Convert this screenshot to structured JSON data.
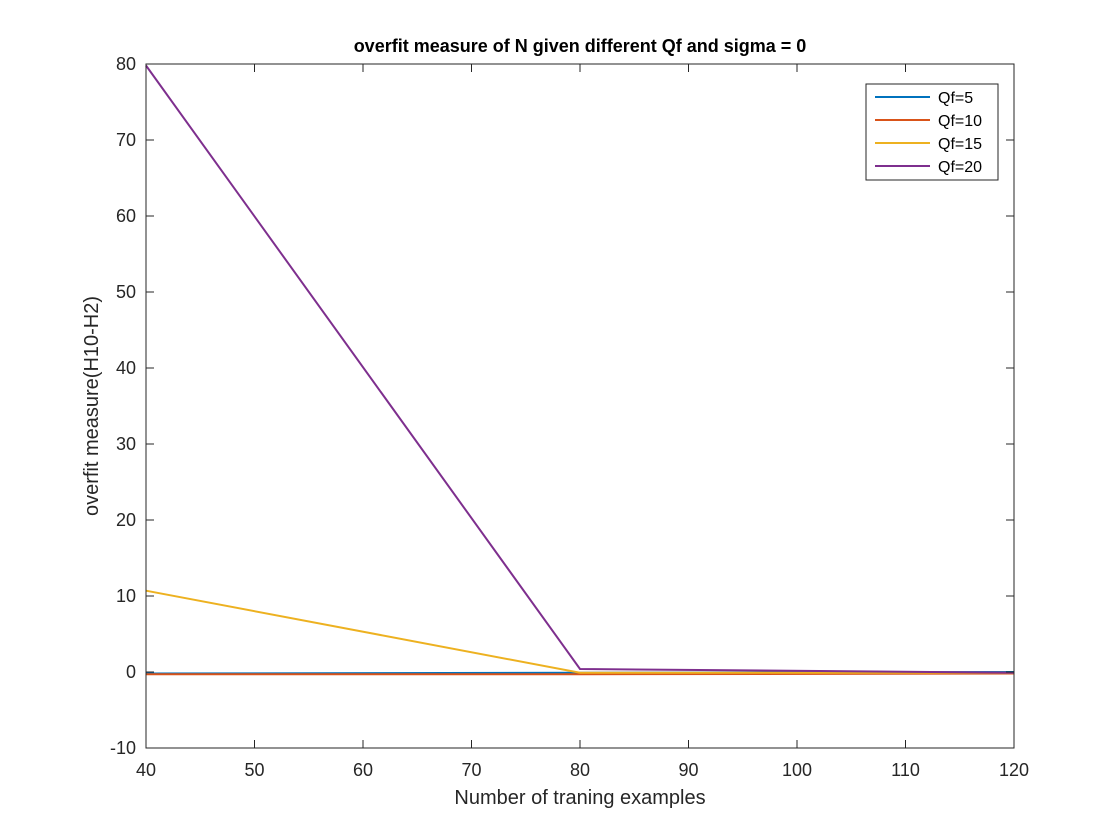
{
  "chart_data": {
    "type": "line",
    "title": "overfit measure of N given different Qf and sigma = 0",
    "xlabel": "Number of traning examples",
    "ylabel": "overfit measure(H10-H2)",
    "xlim": [
      40,
      120
    ],
    "ylim": [
      -10,
      80
    ],
    "xticks": [
      "40",
      "50",
      "60",
      "70",
      "80",
      "90",
      "100",
      "110",
      "120"
    ],
    "yticks": [
      "-10",
      "0",
      "10",
      "20",
      "30",
      "40",
      "50",
      "60",
      "70",
      "80"
    ],
    "x": [
      40,
      80,
      120
    ],
    "series": [
      {
        "name": "Qf=5",
        "values": [
          -0.2,
          -0.1,
          0.0
        ],
        "color": "#0072BD"
      },
      {
        "name": "Qf=10",
        "values": [
          -0.3,
          -0.3,
          -0.2
        ],
        "color": "#D95319"
      },
      {
        "name": "Qf=15",
        "values": [
          10.7,
          -0.1,
          -0.1
        ],
        "color": "#EDB120"
      },
      {
        "name": "Qf=20",
        "values": [
          79.8,
          0.4,
          -0.1
        ],
        "color": "#7E2F8E"
      }
    ],
    "grid": false,
    "legend_position": "top-right"
  }
}
